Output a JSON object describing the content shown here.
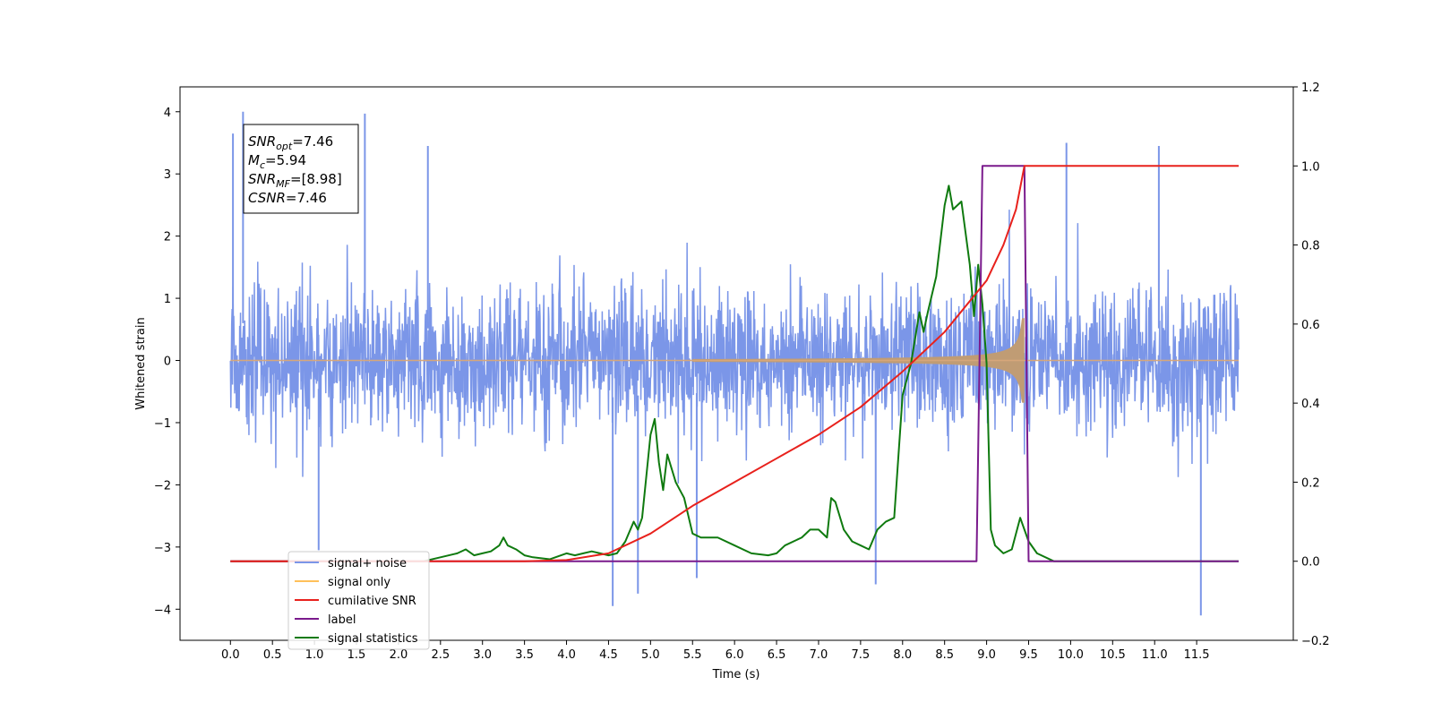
{
  "chart_data": {
    "type": "line",
    "xlabel": "Time (s)",
    "ylabel": "Whitened strain",
    "xlim": [
      -0.6,
      12.65
    ],
    "ylim": [
      -4.5,
      4.4
    ],
    "ylim_right": [
      -0.2,
      1.2
    ],
    "grid": false,
    "legend_placement": "lower-left",
    "x_ticks": [
      0.0,
      0.5,
      1.0,
      1.5,
      2.0,
      2.5,
      3.0,
      3.5,
      4.0,
      4.5,
      5.0,
      5.5,
      6.0,
      6.5,
      7.0,
      7.5,
      8.0,
      8.5,
      9.0,
      9.5,
      10.0,
      10.5,
      11.0,
      11.5
    ],
    "x_tick_labels": [
      "0.0",
      "0.5",
      "1.0",
      "1.5",
      "2.0",
      "2.5",
      "3.0",
      "3.5",
      "4.0",
      "4.5",
      "5.0",
      "5.5",
      "6.0",
      "6.5",
      "7.0",
      "7.5",
      "8.0",
      "8.5",
      "9.0",
      "9.5",
      "10.0",
      "10.5",
      "11.0",
      "11.5"
    ],
    "y_ticks": [
      -4,
      -3,
      -2,
      -1,
      0,
      1,
      2,
      3,
      4
    ],
    "y_tick_labels": [
      "−4",
      "−3",
      "−2",
      "−1",
      "0",
      "1",
      "2",
      "3",
      "4"
    ],
    "y_ticks_right": [
      -0.2,
      0.0,
      0.2,
      0.4,
      0.6,
      0.8,
      1.0,
      1.2
    ],
    "y_tick_labels_right": [
      "−0.2",
      "0.0",
      "0.2",
      "0.4",
      "0.6",
      "0.8",
      "1.0",
      "1.2"
    ],
    "annotation": {
      "lines": [
        {
          "base": "SNR",
          "sub": "opt",
          "rest": "=7.46"
        },
        {
          "base": "M",
          "sub": "c",
          "rest": "=5.94"
        },
        {
          "base": "SNR",
          "sub": "MF",
          "rest": "=[8.98]"
        },
        {
          "base": "CSNR",
          "sub": "",
          "rest": "=7.46"
        }
      ]
    },
    "series": [
      {
        "name": "signal+ noise",
        "axis": "left",
        "color": "#7b96e8",
        "description_kind": "noise_envelope",
        "x_range": [
          0.0,
          12.0
        ],
        "typical_abs": 1.8,
        "extremes": [
          {
            "x": 0.03,
            "y": 3.65
          },
          {
            "x": 0.15,
            "y": 4.0
          },
          {
            "x": 1.6,
            "y": 3.97
          },
          {
            "x": 4.55,
            "y": -3.95
          },
          {
            "x": 4.85,
            "y": -3.75
          },
          {
            "x": 5.55,
            "y": -3.5
          },
          {
            "x": 7.68,
            "y": -3.6
          },
          {
            "x": 9.95,
            "y": 3.5
          },
          {
            "x": 11.05,
            "y": 3.45
          },
          {
            "x": 11.55,
            "y": -4.1
          },
          {
            "x": 1.05,
            "y": -3.05
          },
          {
            "x": 2.35,
            "y": 3.45
          }
        ]
      },
      {
        "name": "signal only",
        "axis": "left",
        "color": "#ffc05a",
        "description_kind": "chirp",
        "x_range": [
          0.0,
          12.0
        ],
        "merger_x": 9.45,
        "peak_amplitude": 0.68
      },
      {
        "name": "cumilative SNR",
        "axis": "right",
        "color": "#e8211c",
        "x": [
          0.0,
          3.5,
          4.0,
          4.5,
          5.0,
          5.5,
          6.0,
          6.5,
          7.0,
          7.5,
          8.0,
          8.5,
          9.0,
          9.2,
          9.35,
          9.45,
          9.46,
          12.0
        ],
        "y": [
          0.0,
          0.0,
          0.003,
          0.02,
          0.07,
          0.14,
          0.2,
          0.26,
          0.32,
          0.39,
          0.48,
          0.58,
          0.71,
          0.8,
          0.89,
          1.0,
          1.0,
          1.0
        ]
      },
      {
        "name": "label",
        "axis": "right",
        "color": "#7a1a8c",
        "x": [
          0.0,
          8.88,
          8.95,
          9.45,
          9.5,
          12.0
        ],
        "y": [
          0.0,
          0.0,
          1.0,
          1.0,
          0.0,
          0.0
        ]
      },
      {
        "name": "signal statistics",
        "axis": "right",
        "color": "#0f7a0f",
        "x": [
          0.0,
          2.3,
          2.5,
          2.7,
          2.8,
          2.9,
          3.0,
          3.1,
          3.2,
          3.25,
          3.3,
          3.4,
          3.5,
          3.6,
          3.8,
          4.0,
          4.1,
          4.2,
          4.3,
          4.4,
          4.5,
          4.6,
          4.7,
          4.8,
          4.85,
          4.9,
          5.0,
          5.05,
          5.1,
          5.15,
          5.2,
          5.3,
          5.4,
          5.5,
          5.6,
          5.8,
          6.0,
          6.2,
          6.4,
          6.5,
          6.6,
          6.8,
          6.9,
          7.0,
          7.1,
          7.15,
          7.2,
          7.3,
          7.4,
          7.5,
          7.6,
          7.7,
          7.8,
          7.9,
          8.0,
          8.1,
          8.2,
          8.25,
          8.3,
          8.4,
          8.5,
          8.55,
          8.6,
          8.7,
          8.8,
          8.85,
          8.9,
          8.95,
          9.0,
          9.05,
          9.1,
          9.2,
          9.3,
          9.4,
          9.5,
          9.6,
          9.8,
          12.0
        ],
        "y": [
          0.0,
          0.0,
          0.01,
          0.02,
          0.03,
          0.015,
          0.02,
          0.025,
          0.04,
          0.06,
          0.04,
          0.03,
          0.015,
          0.01,
          0.005,
          0.02,
          0.015,
          0.02,
          0.025,
          0.02,
          0.015,
          0.02,
          0.05,
          0.1,
          0.08,
          0.11,
          0.32,
          0.36,
          0.25,
          0.18,
          0.27,
          0.2,
          0.16,
          0.07,
          0.06,
          0.06,
          0.04,
          0.02,
          0.015,
          0.02,
          0.04,
          0.06,
          0.08,
          0.08,
          0.06,
          0.16,
          0.15,
          0.08,
          0.05,
          0.04,
          0.03,
          0.08,
          0.1,
          0.11,
          0.42,
          0.5,
          0.63,
          0.58,
          0.63,
          0.72,
          0.9,
          0.95,
          0.89,
          0.91,
          0.75,
          0.62,
          0.75,
          0.65,
          0.5,
          0.08,
          0.04,
          0.02,
          0.03,
          0.11,
          0.05,
          0.02,
          0.0,
          0.0
        ]
      }
    ]
  }
}
